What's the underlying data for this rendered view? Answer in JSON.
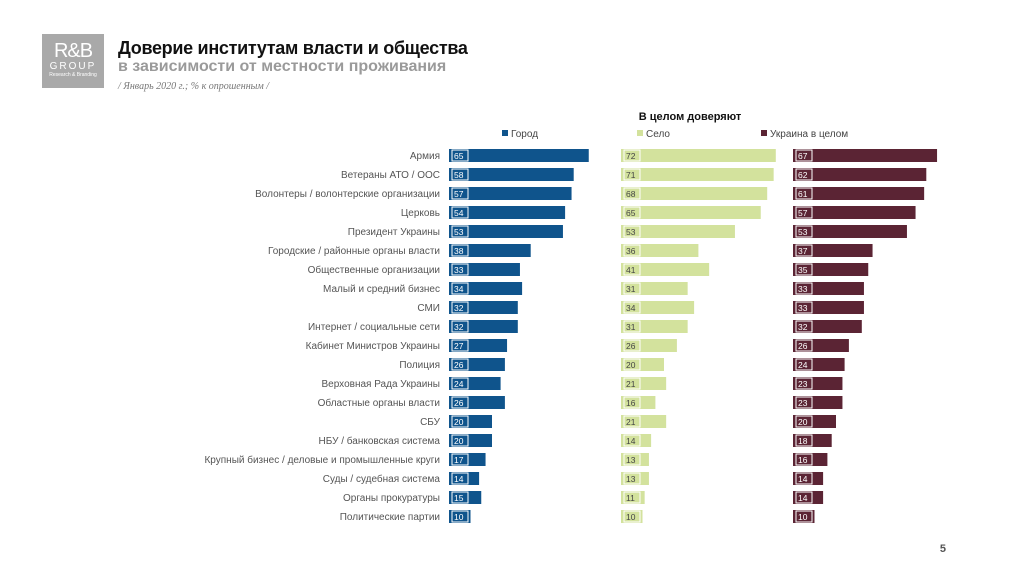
{
  "logo": {
    "line1": "R&B",
    "line2": "GROUP",
    "line3": "Research & Branding"
  },
  "header": {
    "title": "Доверие институтам власти и общества",
    "subtitle": "в зависимости от местности проживания",
    "note": "/ Январь 2020 г.; % к опрошенным /"
  },
  "page_number": "5",
  "chart_data": {
    "type": "bar",
    "orientation": "horizontal",
    "title": "В целом доверяют",
    "legend_position": "top",
    "categories": [
      "Армия",
      "Ветераны АТО / ООС",
      "Волонтеры / волонтерские организации",
      "Церковь",
      "Президент Украины",
      "Городские / районные органы власти",
      "Общественные организации",
      "Малый и средний бизнес",
      "СМИ",
      "Интернет / социальные сети",
      "Кабинет Министров Украины",
      "Полиция",
      "Верховная Рада Украины",
      "Областные органы власти",
      "СБУ",
      "НБУ / банковская система",
      "Крупный бизнес / деловые и промышленные круги",
      "Суды / судебная система",
      "Органы прокуратуры",
      "Политические партии"
    ],
    "series": [
      {
        "name": "Город",
        "color": "#0f548c",
        "label_color": "#ffffff",
        "values": [
          65,
          58,
          57,
          54,
          53,
          38,
          33,
          34,
          32,
          32,
          27,
          26,
          24,
          26,
          20,
          20,
          17,
          14,
          15,
          10
        ]
      },
      {
        "name": "Село",
        "color": "#d3e29d",
        "label_color": "#444444",
        "values": [
          72,
          71,
          68,
          65,
          53,
          36,
          41,
          31,
          34,
          31,
          26,
          20,
          21,
          16,
          21,
          14,
          13,
          13,
          11,
          10
        ]
      },
      {
        "name": "Украина в целом",
        "color": "#5b2434",
        "label_color": "#ffffff",
        "values": [
          67,
          62,
          61,
          57,
          53,
          37,
          35,
          33,
          33,
          32,
          26,
          24,
          23,
          23,
          20,
          18,
          16,
          14,
          14,
          10
        ]
      }
    ]
  }
}
